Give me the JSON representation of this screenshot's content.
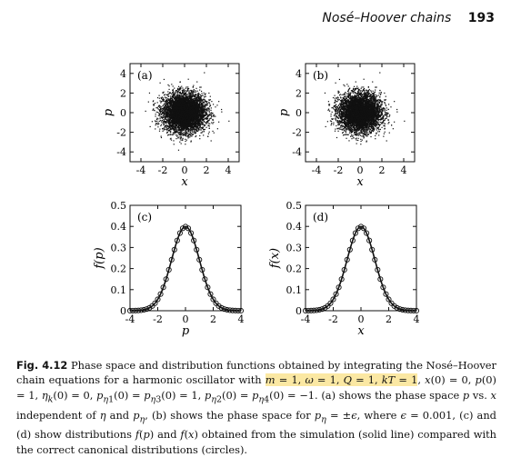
{
  "header": {
    "title": "Nosé–Hoover chains",
    "page_number": "193"
  },
  "chart_data": [
    {
      "panel": "(a)",
      "type": "scatter",
      "xlabel": "x",
      "ylabel": "p",
      "xlim": [
        -5,
        5
      ],
      "ylim": [
        -5,
        5
      ],
      "xticks": [
        "-4",
        "-2",
        "0",
        "2",
        "4"
      ],
      "yticks": [
        "-4",
        "-2",
        "0",
        "2",
        "4"
      ],
      "description": "dense cloud centered at origin, roughly Gaussian, spread ~2.5",
      "spread": 0.95,
      "n_points": 6000,
      "color": "#111111"
    },
    {
      "panel": "(b)",
      "type": "scatter",
      "xlabel": "x",
      "ylabel": "p",
      "xlim": [
        -5,
        5
      ],
      "ylim": [
        -5,
        5
      ],
      "xticks": [
        "-4",
        "-2",
        "0",
        "2",
        "4"
      ],
      "yticks": [
        "-4",
        "-2",
        "0",
        "2",
        "4"
      ],
      "spread": 0.95,
      "n_points": 6000,
      "color": "#111111"
    },
    {
      "panel": "(c)",
      "type": "line",
      "xlabel": "p",
      "ylabel": "f(p)",
      "xlim": [
        -4,
        4
      ],
      "ylim": [
        0,
        0.5
      ],
      "xticks": [
        "-4",
        "-2",
        "0",
        "2",
        "4"
      ],
      "yticks": [
        "0",
        "0.1",
        "0.2",
        "0.3",
        "0.4",
        "0.5"
      ],
      "series": [
        {
          "name": "simulation",
          "style": "solid line"
        },
        {
          "name": "canonical",
          "style": "circles"
        }
      ],
      "x": [
        -4.0,
        -3.8,
        -3.6,
        -3.4,
        -3.2,
        -3.0,
        -2.8,
        -2.6,
        -2.4,
        -2.2,
        -2.0,
        -1.8,
        -1.6,
        -1.4,
        -1.2,
        -1.0,
        -0.8,
        -0.6,
        -0.4,
        -0.2,
        0.0,
        0.2,
        0.4,
        0.6,
        0.8,
        1.0,
        1.2,
        1.4,
        1.6,
        1.8,
        2.0,
        2.2,
        2.4,
        2.6,
        2.8,
        3.0,
        3.2,
        3.4,
        3.6,
        3.8,
        4.0
      ],
      "y": [
        0.0001,
        0.0003,
        0.0006,
        0.0012,
        0.0024,
        0.0044,
        0.0079,
        0.0136,
        0.0224,
        0.0355,
        0.054,
        0.079,
        0.1109,
        0.1497,
        0.1942,
        0.242,
        0.2897,
        0.3332,
        0.3683,
        0.391,
        0.3989,
        0.391,
        0.3683,
        0.3332,
        0.2897,
        0.242,
        0.1942,
        0.1497,
        0.1109,
        0.079,
        0.054,
        0.0355,
        0.0224,
        0.0136,
        0.0079,
        0.0044,
        0.0024,
        0.0012,
        0.0006,
        0.0003,
        0.0001
      ]
    },
    {
      "panel": "(d)",
      "type": "line",
      "xlabel": "x",
      "ylabel": "f(x)",
      "xlim": [
        -4,
        4
      ],
      "ylim": [
        0,
        0.5
      ],
      "xticks": [
        "-4",
        "-2",
        "0",
        "2",
        "4"
      ],
      "yticks": [
        "0",
        "0.1",
        "0.2",
        "0.3",
        "0.4",
        "0.5"
      ],
      "series": [
        {
          "name": "simulation",
          "style": "solid line"
        },
        {
          "name": "canonical",
          "style": "circles"
        }
      ],
      "x": [
        -4.0,
        -3.8,
        -3.6,
        -3.4,
        -3.2,
        -3.0,
        -2.8,
        -2.6,
        -2.4,
        -2.2,
        -2.0,
        -1.8,
        -1.6,
        -1.4,
        -1.2,
        -1.0,
        -0.8,
        -0.6,
        -0.4,
        -0.2,
        0.0,
        0.2,
        0.4,
        0.6,
        0.8,
        1.0,
        1.2,
        1.4,
        1.6,
        1.8,
        2.0,
        2.2,
        2.4,
        2.6,
        2.8,
        3.0,
        3.2,
        3.4,
        3.6,
        3.8,
        4.0
      ],
      "y": [
        0.0001,
        0.0003,
        0.0006,
        0.0012,
        0.0024,
        0.0044,
        0.0079,
        0.0136,
        0.0224,
        0.0355,
        0.054,
        0.079,
        0.1109,
        0.1497,
        0.1942,
        0.242,
        0.2897,
        0.3332,
        0.3683,
        0.391,
        0.3989,
        0.391,
        0.3683,
        0.3332,
        0.2897,
        0.242,
        0.1942,
        0.1497,
        0.1109,
        0.079,
        0.054,
        0.0355,
        0.0224,
        0.0136,
        0.0079,
        0.0044,
        0.0024,
        0.0012,
        0.0006,
        0.0003,
        0.0001
      ]
    }
  ],
  "caption": {
    "label": "Fig. 4.12",
    "text_html": "Phase space and distribution functions obtained by integrating the Nosé–Hoover chain equations for a harmonic oscillator with <span class=\"hl\"><i>m</i> = 1, <i>ω</i> = 1, <i>Q</i> = 1, <i>kT</i> = 1</span>, <i>x</i>(0) = 0, <i>p</i>(0) = 1, <i>η<sub>k</sub></i>(0) = 0, <i>p</i><sub><i>η</i>1</sub>(0) = <i>p</i><sub><i>η</i>3</sub>(0) = 1, <i>p</i><sub><i>η</i>2</sub>(0) = <i>p</i><sub><i>η</i>4</sub>(0) = −1. (a) shows the phase space <i>p</i> vs. <i>x</i> independent of <i>η</i> and <i>p<sub>η</sub></i>, (b) shows the phase space for <i>p<sub>η</sub></i> = ±<i>ϵ</i>, where <i>ϵ</i> = 0.001, (c) and (d) show distributions <i>f</i>(<i>p</i>) and <i>f</i>(<i>x</i>) obtained from the simulation (solid line) compared with the correct canonical distributions (circles)."
  }
}
